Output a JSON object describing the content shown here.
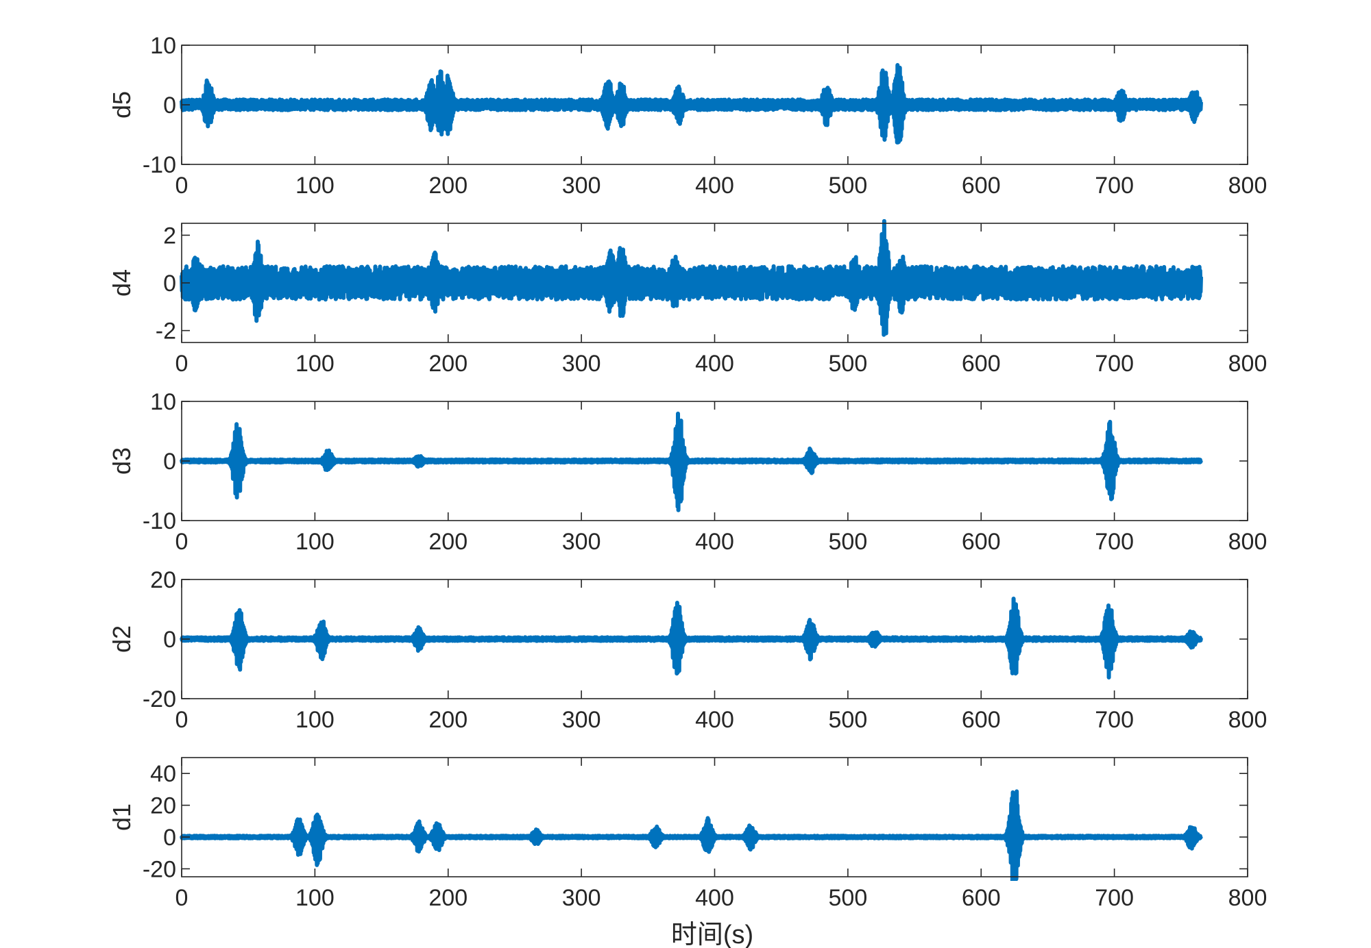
{
  "figure": {
    "xlabel": "时间(s)"
  },
  "colors": {
    "signal": "#0072BD",
    "axis": "#262626",
    "background": "#ffffff"
  },
  "chart_data": [
    {
      "type": "line",
      "ylabel": "d5",
      "xlim": [
        0,
        800
      ],
      "ylim": [
        -10,
        10
      ],
      "xticks": [
        0,
        100,
        200,
        300,
        400,
        500,
        600,
        700,
        800
      ],
      "yticks": [
        -10,
        0,
        10
      ],
      "x_end": 765,
      "baseline_amplitude": 0.9,
      "bursts": [
        {
          "x": 20,
          "amp": 4.5
        },
        {
          "x": 187,
          "amp": 4.5
        },
        {
          "x": 194,
          "amp": 6
        },
        {
          "x": 200,
          "amp": 5
        },
        {
          "x": 320,
          "amp": 4.5
        },
        {
          "x": 330,
          "amp": 4
        },
        {
          "x": 373,
          "amp": 3.5
        },
        {
          "x": 484,
          "amp": 3.5
        },
        {
          "x": 527,
          "amp": 6.5
        },
        {
          "x": 538,
          "amp": 7
        },
        {
          "x": 705,
          "amp": 3
        },
        {
          "x": 760,
          "amp": 3
        }
      ]
    },
    {
      "type": "line",
      "ylabel": "d4",
      "xlim": [
        0,
        800
      ],
      "ylim": [
        -2.5,
        2.5
      ],
      "xticks": [
        0,
        100,
        200,
        300,
        400,
        500,
        600,
        700,
        800
      ],
      "yticks": [
        -2,
        0,
        2
      ],
      "x_end": 765,
      "baseline_amplitude": 0.7,
      "bursts": [
        {
          "x": 11,
          "amp": 1.3
        },
        {
          "x": 57,
          "amp": 1.8
        },
        {
          "x": 190,
          "amp": 1.3
        },
        {
          "x": 322,
          "amp": 1.5
        },
        {
          "x": 330,
          "amp": 1.8
        },
        {
          "x": 370,
          "amp": 1.2
        },
        {
          "x": 505,
          "amp": 1.3
        },
        {
          "x": 527,
          "amp": 2.7
        },
        {
          "x": 540,
          "amp": 1.3
        },
        {
          "x": 760,
          "amp": 0.8
        }
      ]
    },
    {
      "type": "line",
      "ylabel": "d3",
      "xlim": [
        0,
        800
      ],
      "ylim": [
        -10,
        10
      ],
      "xticks": [
        0,
        100,
        200,
        300,
        400,
        500,
        600,
        700,
        800
      ],
      "yticks": [
        -10,
        0,
        10
      ],
      "x_end": 765,
      "baseline_amplitude": 0.25,
      "bursts": [
        {
          "x": 42,
          "amp": 7
        },
        {
          "x": 110,
          "amp": 2
        },
        {
          "x": 178,
          "amp": 1
        },
        {
          "x": 373,
          "amp": 9
        },
        {
          "x": 472,
          "amp": 2.2
        },
        {
          "x": 697,
          "amp": 7
        }
      ]
    },
    {
      "type": "line",
      "ylabel": "d2",
      "xlim": [
        0,
        800
      ],
      "ylim": [
        -20,
        20
      ],
      "xticks": [
        0,
        100,
        200,
        300,
        400,
        500,
        600,
        700,
        800
      ],
      "yticks": [
        -20,
        0,
        20
      ],
      "x_end": 765,
      "baseline_amplitude": 0.6,
      "bursts": [
        {
          "x": 43,
          "amp": 11
        },
        {
          "x": 105,
          "amp": 7
        },
        {
          "x": 178,
          "amp": 4
        },
        {
          "x": 372,
          "amp": 14
        },
        {
          "x": 472,
          "amp": 7
        },
        {
          "x": 520,
          "amp": 3
        },
        {
          "x": 625,
          "amp": 14
        },
        {
          "x": 696,
          "amp": 13
        },
        {
          "x": 758,
          "amp": 3
        }
      ]
    },
    {
      "type": "line",
      "ylabel": "d1",
      "xlim": [
        0,
        800
      ],
      "ylim": [
        -25,
        50
      ],
      "xticks": [
        0,
        100,
        200,
        300,
        400,
        500,
        600,
        700,
        800
      ],
      "yticks": [
        -20,
        0,
        20,
        40
      ],
      "x_end": 765,
      "baseline_amplitude": 0.8,
      "bursts": [
        {
          "x": 88,
          "amp": 12
        },
        {
          "x": 102,
          "amp": 18
        },
        {
          "x": 178,
          "amp": 10
        },
        {
          "x": 192,
          "amp": 10
        },
        {
          "x": 266,
          "amp": 5
        },
        {
          "x": 356,
          "amp": 7
        },
        {
          "x": 395,
          "amp": 12
        },
        {
          "x": 427,
          "amp": 8
        },
        {
          "x": 625,
          "amp": 36
        },
        {
          "x": 758,
          "amp": 8
        }
      ]
    }
  ]
}
